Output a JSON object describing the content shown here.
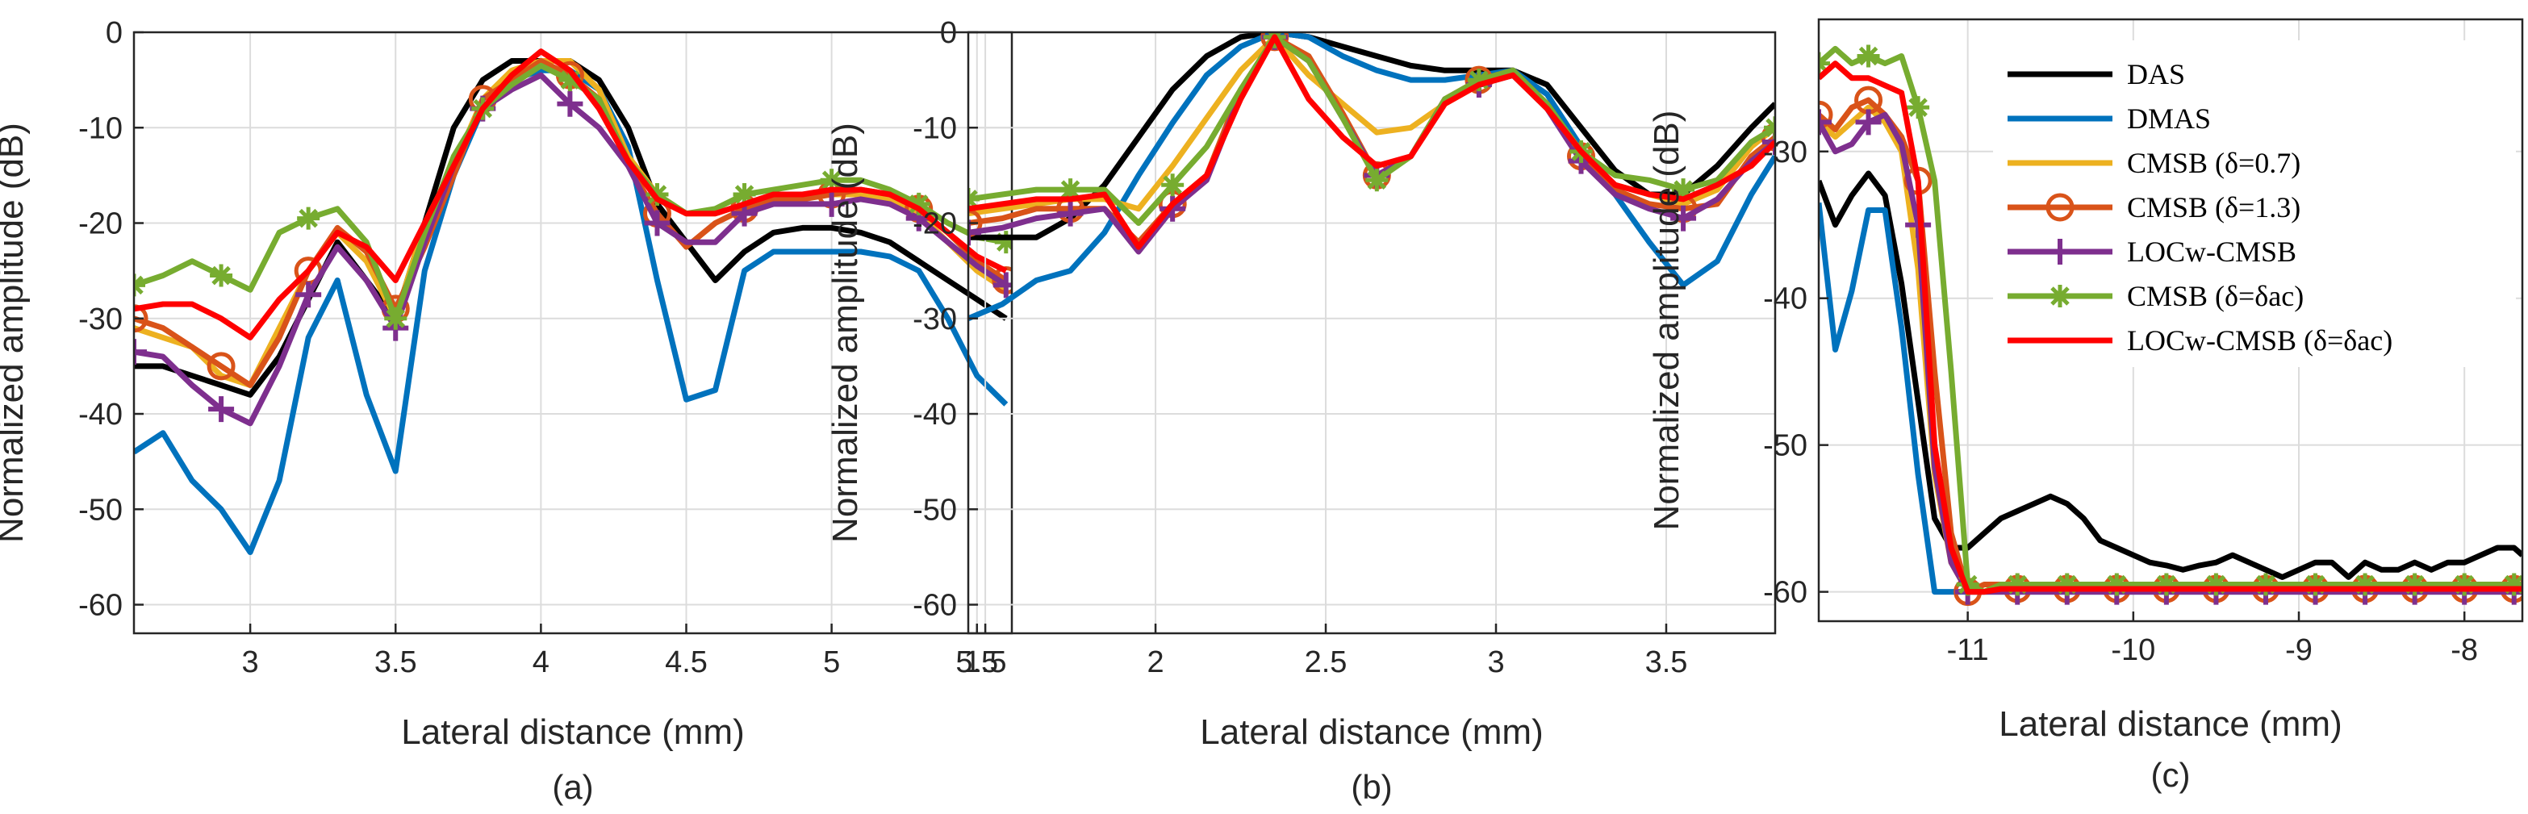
{
  "figure": {
    "panel_labels": [
      "(a)",
      "(b)",
      "(c)"
    ],
    "legend": [
      {
        "label": "DAS",
        "color": "#000000",
        "marker": "none"
      },
      {
        "label": "DMAS",
        "color": "#0072BD",
        "marker": "none"
      },
      {
        "label": "CMSB (δ=0.7)",
        "color": "#EDB120",
        "marker": "none"
      },
      {
        "label": "CMSB (δ=1.3)",
        "color": "#D95319",
        "marker": "circle"
      },
      {
        "label": "LOCw-CMSB",
        "color": "#7E2F8E",
        "marker": "plus"
      },
      {
        "label": "CMSB (δ=δac)",
        "color": "#77AC30",
        "marker": "star"
      },
      {
        "label": "LOCw-CMSB (δ=δac)",
        "color": "#FF0000",
        "marker": "none"
      }
    ]
  },
  "chart_data": [
    {
      "type": "line",
      "panel": "(a)",
      "xlabel": "Lateral distance (mm)",
      "ylabel": "Normalized amplitude (dB)",
      "xlim": [
        2.6,
        5.62
      ],
      "ylim": [
        -63,
        0
      ],
      "xticks": [
        3,
        3.5,
        4,
        4.5,
        5,
        5.5
      ],
      "yticks": [
        0,
        -10,
        -20,
        -30,
        -40,
        -50,
        -60
      ],
      "xticklabels": [
        "3",
        "3.5",
        "4",
        "4.5",
        "5",
        "5.5"
      ],
      "yticklabels": [
        "0",
        "-10",
        "-20",
        "-30",
        "-40",
        "-50",
        "-60"
      ],
      "x": [
        2.6,
        2.7,
        2.8,
        2.9,
        3.0,
        3.1,
        3.2,
        3.3,
        3.4,
        3.5,
        3.6,
        3.7,
        3.8,
        3.9,
        4.0,
        4.1,
        4.2,
        4.3,
        4.4,
        4.5,
        4.6,
        4.7,
        4.8,
        4.9,
        5.0,
        5.1,
        5.2,
        5.3,
        5.4,
        5.5,
        5.6
      ],
      "series": [
        {
          "name": "DAS",
          "values": [
            -35,
            -35,
            -36,
            -37,
            -38,
            -34,
            -28,
            -22,
            -26,
            -30,
            -20,
            -10,
            -5,
            -3,
            -3,
            -3,
            -5,
            -10,
            -18,
            -22,
            -26,
            -23,
            -21,
            -20.5,
            -20.5,
            -21,
            -22,
            -24,
            -26,
            -28,
            -30
          ]
        },
        {
          "name": "DMAS",
          "values": [
            -44,
            -42,
            -47,
            -50,
            -54.5,
            -47,
            -32,
            -26,
            -38,
            -46,
            -25,
            -15,
            -8,
            -5,
            -4,
            -4,
            -6,
            -12,
            -26,
            -38.5,
            -37.5,
            -25,
            -23,
            -23,
            -23,
            -23,
            -23.5,
            -25,
            -30,
            -36,
            -39
          ]
        },
        {
          "name": "CMSB (δ=0.7)",
          "values": [
            -31,
            -32,
            -33,
            -36,
            -37,
            -31,
            -25,
            -21,
            -24,
            -30,
            -20,
            -14,
            -7,
            -4,
            -3,
            -3,
            -6,
            -13,
            -17,
            -19,
            -19,
            -18,
            -17,
            -17,
            -17,
            -17,
            -17.5,
            -19,
            -22,
            -25,
            -27
          ]
        },
        {
          "name": "CMSB (δ=1.3)",
          "values": [
            -30,
            -31,
            -33,
            -35,
            -37,
            -32,
            -25,
            -20.5,
            -23,
            -29,
            -22.5,
            -15,
            -7,
            -5,
            -3,
            -4.5,
            -7,
            -14,
            -19,
            -22.5,
            -20,
            -18.5,
            -17.5,
            -17.5,
            -17,
            -16.5,
            -17,
            -18.5,
            -21,
            -24,
            -26
          ]
        },
        {
          "name": "LOCw-CMSB",
          "values": [
            -33.5,
            -34,
            -37,
            -39.5,
            -41,
            -35,
            -27.5,
            -22.5,
            -26,
            -31,
            -22,
            -14,
            -8,
            -6,
            -4.5,
            -7.5,
            -10,
            -14,
            -20,
            -22,
            -22,
            -19,
            -18,
            -18,
            -18,
            -17.5,
            -18,
            -19.5,
            -22,
            -24.5,
            -26.5
          ]
        },
        {
          "name": "CMSB (δ=δac)",
          "values": [
            -26.5,
            -25.5,
            -24,
            -25.5,
            -27,
            -21,
            -19.5,
            -18.5,
            -22,
            -30,
            -21,
            -13,
            -8,
            -5.5,
            -3.5,
            -5,
            -7,
            -13.5,
            -17,
            -19,
            -18.5,
            -17,
            -16.5,
            -16,
            -15.5,
            -15.5,
            -16.5,
            -18,
            -20,
            -21.5,
            -22
          ]
        },
        {
          "name": "LOCw-CMSB (δ=δac)",
          "values": [
            -29,
            -28.5,
            -28.5,
            -30,
            -32,
            -28,
            -25,
            -21,
            -22.5,
            -26,
            -20,
            -14,
            -8,
            -4.5,
            -2,
            -4,
            -8,
            -13.5,
            -17.5,
            -19,
            -19,
            -18,
            -17,
            -17,
            -16.5,
            -16.5,
            -17,
            -18.5,
            -21,
            -23.5,
            -25
          ]
        }
      ]
    },
    {
      "type": "line",
      "panel": "(b)",
      "xlabel": "Lateral distance (mm)",
      "ylabel": "Normalized amplitude (dB)",
      "xlim": [
        1.45,
        3.82
      ],
      "ylim": [
        -63,
        0
      ],
      "xticks": [
        1.5,
        2,
        2.5,
        3,
        3.5
      ],
      "yticks": [
        0,
        -10,
        -20,
        -30,
        -40,
        -50,
        -60
      ],
      "xticklabels": [
        "1.5",
        "2",
        "2.5",
        "3",
        "3.5"
      ],
      "yticklabels": [
        "0",
        "-10",
        "-20",
        "-30",
        "-40",
        "-50",
        "-60"
      ],
      "x": [
        1.45,
        1.55,
        1.65,
        1.75,
        1.85,
        1.95,
        2.05,
        2.15,
        2.25,
        2.35,
        2.45,
        2.55,
        2.65,
        2.75,
        2.85,
        2.95,
        3.05,
        3.15,
        3.25,
        3.35,
        3.45,
        3.55,
        3.65,
        3.75,
        3.82
      ],
      "series": [
        {
          "name": "DAS",
          "values": [
            -21.5,
            -21.5,
            -21.5,
            -19.5,
            -16,
            -11,
            -6,
            -2.5,
            -0.5,
            0,
            -0.5,
            -1.5,
            -2.5,
            -3.5,
            -4,
            -4,
            -4,
            -5.5,
            -10,
            -14.5,
            -17,
            -17,
            -14,
            -10,
            -7.5
          ]
        },
        {
          "name": "DMAS",
          "values": [
            -30,
            -28.5,
            -26,
            -25,
            -21,
            -15,
            -9.5,
            -4.5,
            -1.5,
            0,
            -0.5,
            -2.5,
            -4,
            -5,
            -5,
            -4.5,
            -4,
            -6.5,
            -12,
            -17,
            -22,
            -26.5,
            -24,
            -17,
            -13
          ]
        },
        {
          "name": "CMSB (δ=0.7)",
          "values": [
            -19,
            -18.5,
            -18,
            -17.5,
            -17.5,
            -18.5,
            -14,
            -9,
            -4,
            -0.5,
            -4.5,
            -7.5,
            -10.5,
            -10,
            -7.5,
            -5.5,
            -4.5,
            -8,
            -13,
            -16,
            -17,
            -18,
            -16.5,
            -12,
            -10
          ]
        },
        {
          "name": "CMSB (δ=1.3)",
          "values": [
            -20,
            -19.5,
            -18.5,
            -18.5,
            -18.5,
            -22,
            -18,
            -15,
            -6,
            -0.5,
            -2.5,
            -8.5,
            -15,
            -13,
            -7,
            -5,
            -4,
            -7.5,
            -13,
            -16.5,
            -18,
            -18.5,
            -18,
            -13,
            -11
          ]
        },
        {
          "name": "LOCw-CMSB",
          "values": [
            -21,
            -20.5,
            -19.5,
            -19,
            -18.5,
            -23,
            -18.5,
            -15.5,
            -6.5,
            -0.5,
            -3,
            -9,
            -15,
            -13,
            -7,
            -5.5,
            -4.5,
            -8,
            -13.5,
            -17,
            -18.5,
            -19.5,
            -17.5,
            -13.5,
            -11.5
          ]
        },
        {
          "name": "CMSB (δ=δac)",
          "values": [
            -17.5,
            -17,
            -16.5,
            -16.5,
            -16.5,
            -20,
            -16,
            -12,
            -6,
            -0.5,
            -3,
            -9,
            -15.5,
            -13,
            -7,
            -5,
            -4,
            -7.5,
            -12.5,
            -15,
            -15.5,
            -16.5,
            -15.5,
            -11.5,
            -10
          ]
        },
        {
          "name": "LOCw-CMSB (δ=δac)",
          "values": [
            -18.5,
            -18,
            -17.5,
            -17.5,
            -17,
            -22.5,
            -18,
            -15,
            -7,
            -0.5,
            -7,
            -11,
            -14,
            -13,
            -7.5,
            -5.5,
            -4.5,
            -8,
            -12.5,
            -16,
            -17,
            -17.5,
            -16,
            -14,
            -11.5
          ]
        }
      ]
    },
    {
      "type": "line",
      "panel": "(c)",
      "xlabel": "Lateral distance (mm)",
      "ylabel": "Normalized amplitude (dB)",
      "xlim": [
        -11.9,
        -7.65
      ],
      "ylim": [
        -62,
        -21
      ],
      "xticks": [
        -11,
        -10,
        -9,
        -8
      ],
      "yticks": [
        -30,
        -40,
        -50,
        -60
      ],
      "xticklabels": [
        "-11",
        "-10",
        "-9",
        "-8"
      ],
      "yticklabels": [
        "-30",
        "-40",
        "-50",
        "-60"
      ],
      "x": [
        -11.9,
        -11.8,
        -11.7,
        -11.6,
        -11.5,
        -11.4,
        -11.3,
        -11.2,
        -11.1,
        -11.0,
        -10.9,
        -10.8,
        -10.7,
        -10.6,
        -10.5,
        -10.4,
        -10.3,
        -10.2,
        -10.1,
        -10.0,
        -9.9,
        -9.8,
        -9.7,
        -9.6,
        -9.5,
        -9.4,
        -9.3,
        -9.2,
        -9.1,
        -9.0,
        -8.9,
        -8.8,
        -8.7,
        -8.6,
        -8.5,
        -8.4,
        -8.3,
        -8.2,
        -8.1,
        -8.0,
        -7.9,
        -7.8,
        -7.7,
        -7.65
      ],
      "series": [
        {
          "name": "DAS",
          "values": [
            -32,
            -35,
            -33,
            -31.5,
            -33,
            -39,
            -47,
            -55,
            -57,
            -57,
            -56,
            -55,
            -54.5,
            -54,
            -53.5,
            -54,
            -55,
            -56.5,
            -57,
            -57.5,
            -58,
            -58.2,
            -58.5,
            -58.2,
            -58,
            -57.5,
            -58,
            -58.5,
            -59,
            -58.5,
            -58,
            -58,
            -59,
            -58,
            -58.5,
            -58.5,
            -58,
            -58.5,
            -58,
            -58,
            -57.5,
            -57,
            -57,
            -57.5
          ]
        },
        {
          "name": "DMAS",
          "values": [
            -33.5,
            -43.5,
            -39.5,
            -34,
            -34,
            -42,
            -52,
            -60,
            -60,
            -60,
            -60,
            -60,
            -60,
            -60,
            -60,
            -60,
            -60,
            -60,
            -60,
            -60,
            -60,
            -60,
            -60,
            -60,
            -60,
            -60,
            -60,
            -60,
            -60,
            -60,
            -60,
            -60,
            -60,
            -60,
            -60,
            -60,
            -60,
            -60,
            -60,
            -60,
            -60,
            -60,
            -60,
            -60
          ]
        },
        {
          "name": "CMSB (δ=0.7)",
          "values": [
            -28,
            -29,
            -28,
            -27,
            -28,
            -30,
            -38,
            -52,
            -58,
            -60,
            -60,
            -59.5,
            -59.8,
            -59.8,
            -59.8,
            -59.8,
            -59.8,
            -59.8,
            -59.8,
            -59.8,
            -59.8,
            -59.8,
            -59.8,
            -59.8,
            -59.8,
            -59.8,
            -59.8,
            -59.8,
            -59.8,
            -59.8,
            -59.8,
            -59.8,
            -59.8,
            -59.8,
            -59.8,
            -59.8,
            -59.8,
            -59.8,
            -59.8,
            -59.8,
            -59.8,
            -59.8,
            -59.8,
            -59.8
          ]
        },
        {
          "name": "CMSB (δ=1.3)",
          "values": [
            -27.5,
            -28.5,
            -27,
            -26.5,
            -27.5,
            -29,
            -32,
            -45,
            -56,
            -60,
            -59.5,
            -59.5,
            -59.8,
            -59.8,
            -59.8,
            -59.8,
            -59.8,
            -59.8,
            -59.8,
            -59.8,
            -59.8,
            -59.8,
            -59.8,
            -59.8,
            -59.8,
            -59.8,
            -59.8,
            -59.8,
            -59.8,
            -59.8,
            -59.8,
            -59.8,
            -59.8,
            -59.8,
            -59.8,
            -59.8,
            -59.8,
            -59.8,
            -59.8,
            -59.8,
            -59.8,
            -59.8,
            -59.8,
            -59.8
          ]
        },
        {
          "name": "LOCw-CMSB",
          "values": [
            -28,
            -30,
            -29.5,
            -28,
            -27.5,
            -29.5,
            -35,
            -51.5,
            -58,
            -60,
            -60,
            -60,
            -60,
            -60,
            -60,
            -60,
            -60,
            -60,
            -60,
            -60,
            -60,
            -60,
            -60,
            -60,
            -60,
            -60,
            -60,
            -60,
            -60,
            -60,
            -60,
            -60,
            -60,
            -60,
            -60,
            -60,
            -60,
            -60,
            -60,
            -60,
            -60,
            -60,
            -60,
            -60
          ]
        },
        {
          "name": "CMSB (δ=δac)",
          "values": [
            -24,
            -23,
            -24,
            -23.5,
            -24,
            -23.5,
            -27,
            -32,
            -45,
            -59.5,
            -60,
            -59.5,
            -59.5,
            -59.5,
            -59.5,
            -59.5,
            -59.5,
            -59.5,
            -59.5,
            -59.5,
            -59.5,
            -59.5,
            -59.5,
            -59.5,
            -59.5,
            -59.5,
            -59.5,
            -59.5,
            -59.5,
            -59.5,
            -59.5,
            -59.5,
            -59.5,
            -59.5,
            -59.5,
            -59.5,
            -59.5,
            -59.5,
            -59.5,
            -59.5,
            -59.5,
            -59.5,
            -59.5,
            -59.5
          ]
        },
        {
          "name": "LOCw-CMSB (δ=δac)",
          "values": [
            -25,
            -24,
            -25,
            -25,
            -25.5,
            -26,
            -32,
            -50,
            -57,
            -60,
            -60,
            -59.8,
            -59.8,
            -59.8,
            -59.8,
            -59.8,
            -59.8,
            -59.8,
            -59.8,
            -59.8,
            -59.8,
            -59.8,
            -59.8,
            -59.8,
            -59.8,
            -59.8,
            -59.8,
            -59.8,
            -59.8,
            -59.8,
            -59.8,
            -59.8,
            -59.8,
            -59.8,
            -59.8,
            -59.8,
            -59.8,
            -59.8,
            -59.8,
            -59.8,
            -59.8,
            -59.8,
            -59.8,
            -59.8
          ]
        }
      ]
    }
  ]
}
